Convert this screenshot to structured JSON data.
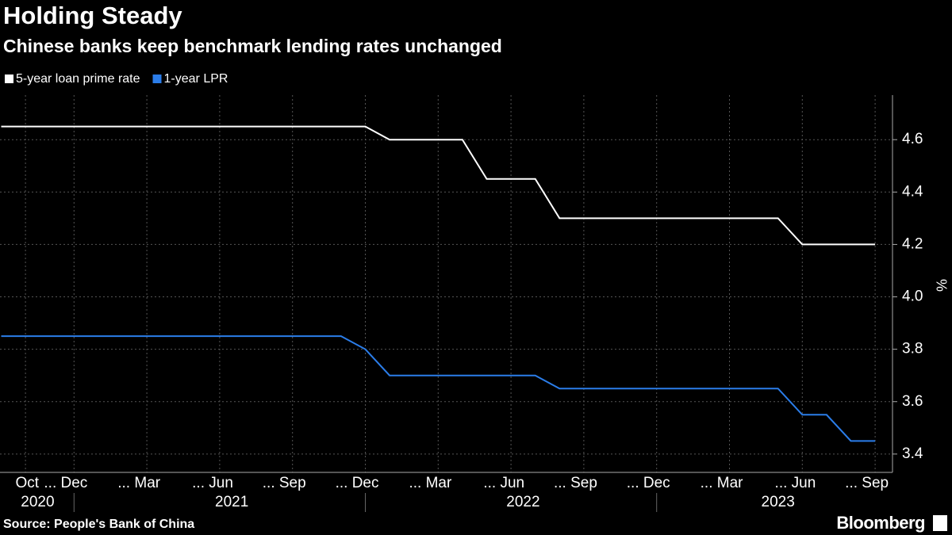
{
  "chart_data": {
    "type": "line",
    "title": "Holding Steady",
    "subtitle": "Chinese banks keep benchmark lending rates unchanged",
    "source": "Source: People's Bank of China",
    "brand": "Bloomberg",
    "y_axis_label": "%",
    "x": [
      "2020-09",
      "2020-10",
      "2020-11",
      "2020-12",
      "2021-01",
      "2021-02",
      "2021-03",
      "2021-04",
      "2021-05",
      "2021-06",
      "2021-07",
      "2021-08",
      "2021-09",
      "2021-10",
      "2021-11",
      "2021-12",
      "2022-01",
      "2022-02",
      "2022-03",
      "2022-04",
      "2022-05",
      "2022-06",
      "2022-07",
      "2022-08",
      "2022-09",
      "2022-10",
      "2022-11",
      "2022-12",
      "2023-01",
      "2023-02",
      "2023-03",
      "2023-04",
      "2023-05",
      "2023-06",
      "2023-07",
      "2023-08",
      "2023-09"
    ],
    "xticks": [
      {
        "value": "2020-10",
        "label": "Oct"
      },
      {
        "value": "2020-12",
        "label": "... Dec"
      },
      {
        "value": "2021-03",
        "label": "... Mar"
      },
      {
        "value": "2021-06",
        "label": "... Jun"
      },
      {
        "value": "2021-09",
        "label": "... Sep"
      },
      {
        "value": "2021-12",
        "label": "... Dec"
      },
      {
        "value": "2022-03",
        "label": "... Mar"
      },
      {
        "value": "2022-06",
        "label": "... Jun"
      },
      {
        "value": "2022-09",
        "label": "... Sep"
      },
      {
        "value": "2022-12",
        "label": "... Dec"
      },
      {
        "value": "2023-03",
        "label": "... Mar"
      },
      {
        "value": "2023-06",
        "label": "... Jun"
      },
      {
        "value": "2023-09",
        "label": "... Sep"
      }
    ],
    "years": [
      "2020",
      "2021",
      "2022",
      "2023"
    ],
    "series": [
      {
        "name": "5-year loan prime rate",
        "color": "#ffffff",
        "values": [
          4.65,
          4.65,
          4.65,
          4.65,
          4.65,
          4.65,
          4.65,
          4.65,
          4.65,
          4.65,
          4.65,
          4.65,
          4.65,
          4.65,
          4.65,
          4.65,
          4.6,
          4.6,
          4.6,
          4.6,
          4.45,
          4.45,
          4.45,
          4.3,
          4.3,
          4.3,
          4.3,
          4.3,
          4.3,
          4.3,
          4.3,
          4.3,
          4.3,
          4.2,
          4.2,
          4.2,
          4.2
        ]
      },
      {
        "name": "1-year LPR",
        "color": "#2b7de9",
        "values": [
          3.85,
          3.85,
          3.85,
          3.85,
          3.85,
          3.85,
          3.85,
          3.85,
          3.85,
          3.85,
          3.85,
          3.85,
          3.85,
          3.85,
          3.85,
          3.8,
          3.7,
          3.7,
          3.7,
          3.7,
          3.7,
          3.7,
          3.7,
          3.65,
          3.65,
          3.65,
          3.65,
          3.65,
          3.65,
          3.65,
          3.65,
          3.65,
          3.65,
          3.55,
          3.55,
          3.45,
          3.45
        ]
      }
    ],
    "ylim": [
      3.33,
      4.77
    ],
    "yticks": [
      3.4,
      3.6,
      3.8,
      {
        "value": 4,
        "label": "4.0"
      },
      4.2,
      4.4,
      4.6
    ],
    "grid": true
  }
}
